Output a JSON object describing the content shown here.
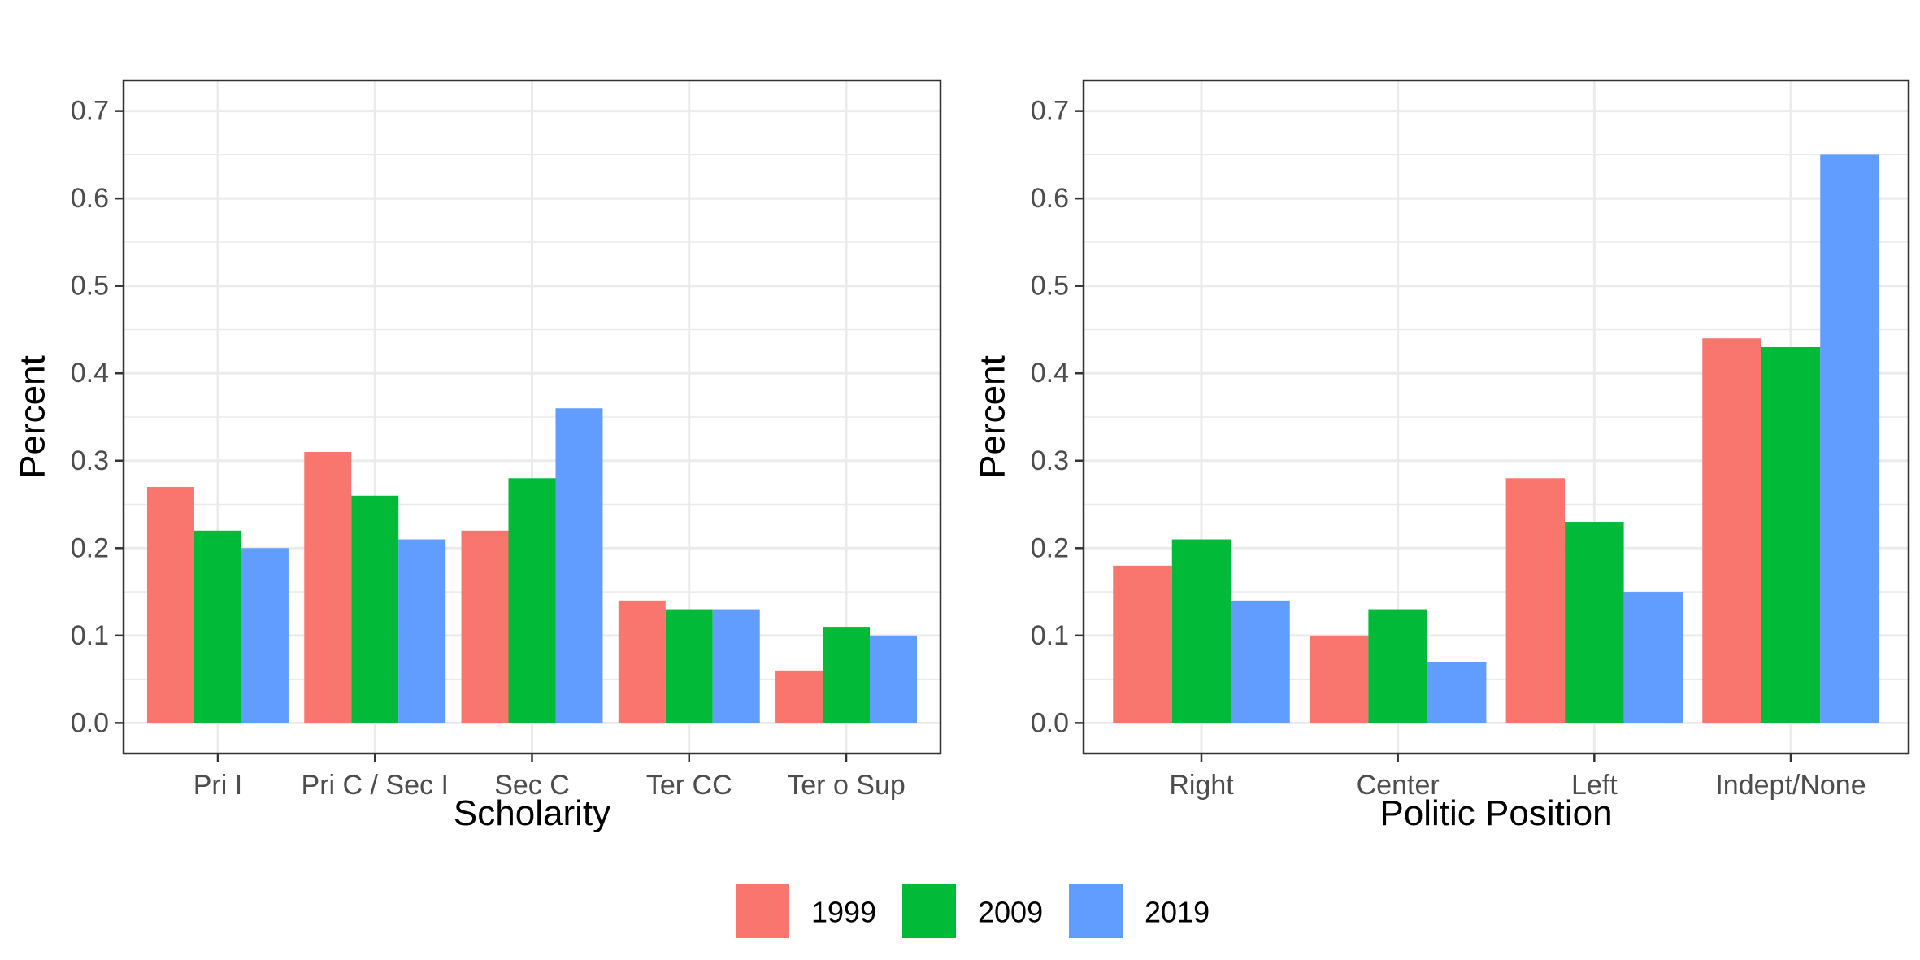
{
  "chart_data": [
    {
      "type": "bar",
      "xlabel": "Scholarity",
      "ylabel": "Percent",
      "categories": [
        "Pri I",
        "Pri C / Sec I",
        "Sec C",
        "Ter CC",
        "Ter o Sup"
      ],
      "series": [
        {
          "name": "1999",
          "color": "#F8766D",
          "values": [
            0.27,
            0.31,
            0.22,
            0.14,
            0.06
          ]
        },
        {
          "name": "2009",
          "color": "#00BA38",
          "values": [
            0.22,
            0.26,
            0.28,
            0.13,
            0.11
          ]
        },
        {
          "name": "2019",
          "color": "#619CFF",
          "values": [
            0.2,
            0.21,
            0.36,
            0.13,
            0.1
          ]
        }
      ],
      "ylim": [
        -0.035,
        0.735
      ],
      "yticks": [
        0.0,
        0.1,
        0.2,
        0.3,
        0.4,
        0.5,
        0.6,
        0.7
      ],
      "ytick_labels": [
        "0.0",
        "0.1",
        "0.2",
        "0.3",
        "0.4",
        "0.5",
        "0.6",
        "0.7"
      ],
      "grid": true
    },
    {
      "type": "bar",
      "xlabel": "Politic Position",
      "ylabel": "Percent",
      "categories": [
        "Right",
        "Center",
        "Left",
        "Indept/None"
      ],
      "series": [
        {
          "name": "1999",
          "color": "#F8766D",
          "values": [
            0.18,
            0.1,
            0.28,
            0.44
          ]
        },
        {
          "name": "2009",
          "color": "#00BA38",
          "values": [
            0.21,
            0.13,
            0.23,
            0.43
          ]
        },
        {
          "name": "2019",
          "color": "#619CFF",
          "values": [
            0.14,
            0.07,
            0.15,
            0.65
          ]
        }
      ],
      "ylim": [
        -0.035,
        0.735
      ],
      "yticks": [
        0.0,
        0.1,
        0.2,
        0.3,
        0.4,
        0.5,
        0.6,
        0.7
      ],
      "ytick_labels": [
        "0.0",
        "0.1",
        "0.2",
        "0.3",
        "0.4",
        "0.5",
        "0.6",
        "0.7"
      ],
      "grid": true
    }
  ],
  "legend": {
    "position": "bottom",
    "items": [
      {
        "label": "1999",
        "color": "#F8766D"
      },
      {
        "label": "2009",
        "color": "#00BA38"
      },
      {
        "label": "2019",
        "color": "#619CFF"
      }
    ]
  }
}
